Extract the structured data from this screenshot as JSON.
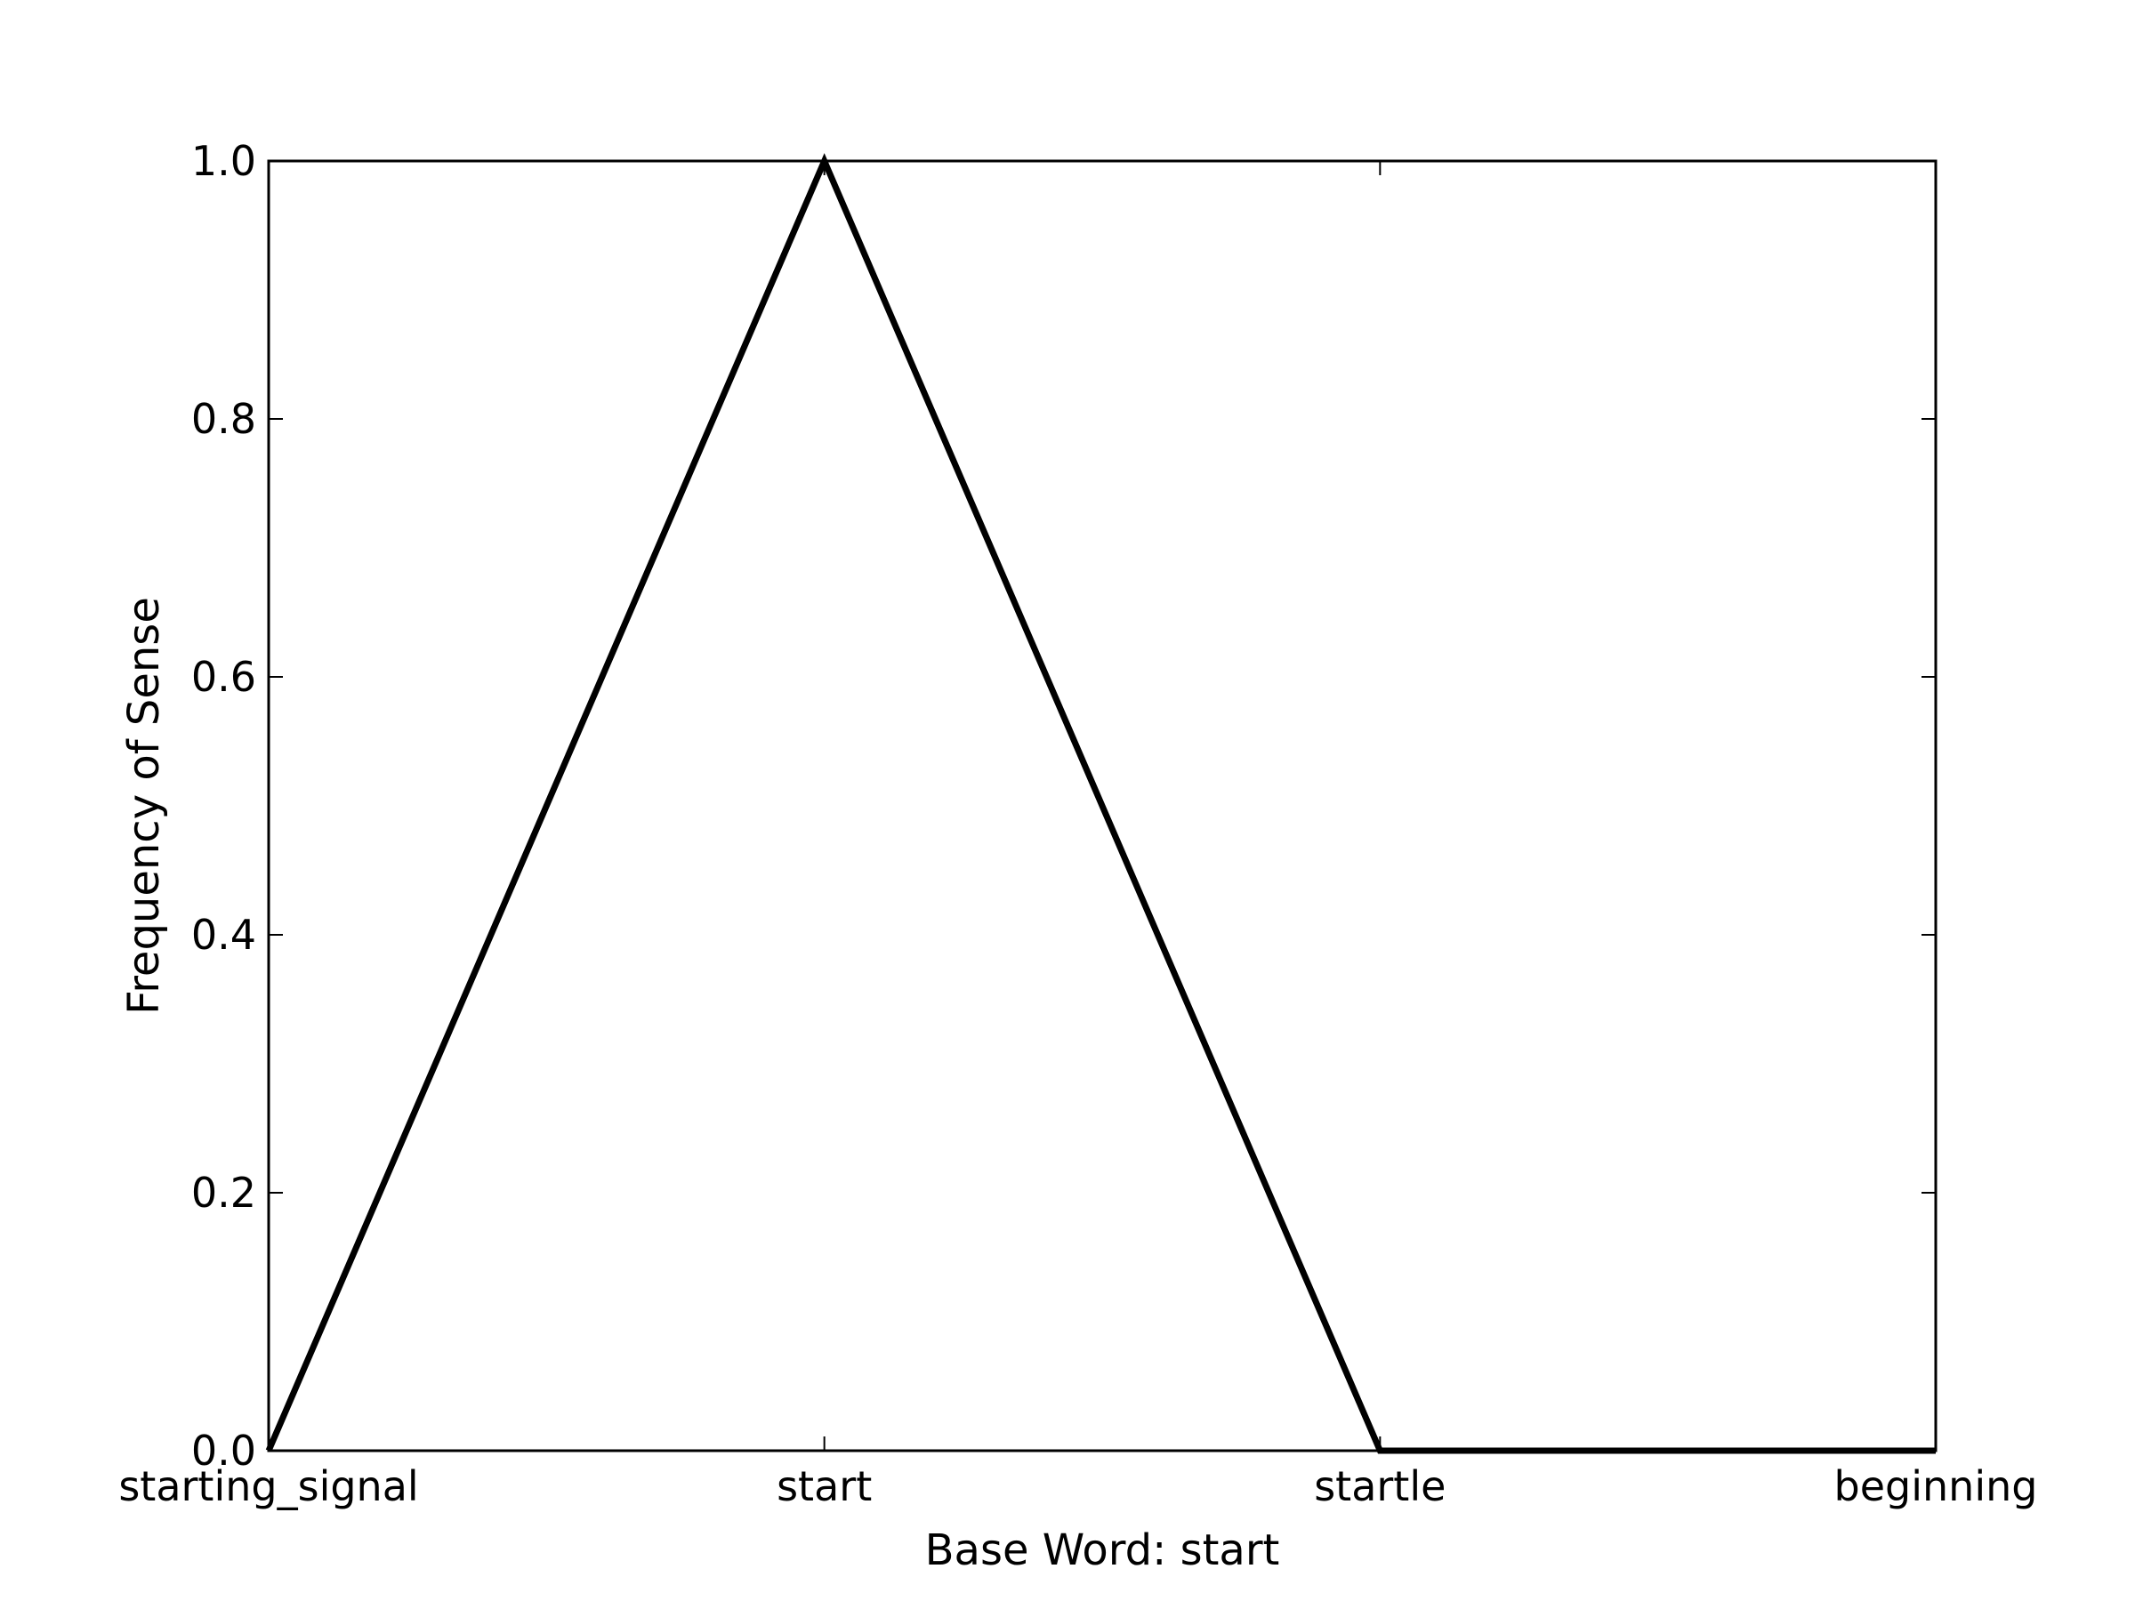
{
  "chart_data": {
    "type": "line",
    "categories": [
      "starting_signal",
      "start",
      "startle",
      "beginning"
    ],
    "series": [
      {
        "values": [
          0.0,
          1.0,
          0.0,
          0.0
        ]
      }
    ],
    "xlabel": "Base Word: start",
    "ylabel": "Frequency of Sense",
    "ylim": [
      0.0,
      1.0
    ],
    "yticks": [
      0.0,
      0.2,
      0.4,
      0.6,
      0.8,
      1.0
    ],
    "ytick_labels": [
      "0.0",
      "0.2",
      "0.4",
      "0.6",
      "0.8",
      "1.0"
    ],
    "grid": false,
    "line_color": "#000000"
  }
}
